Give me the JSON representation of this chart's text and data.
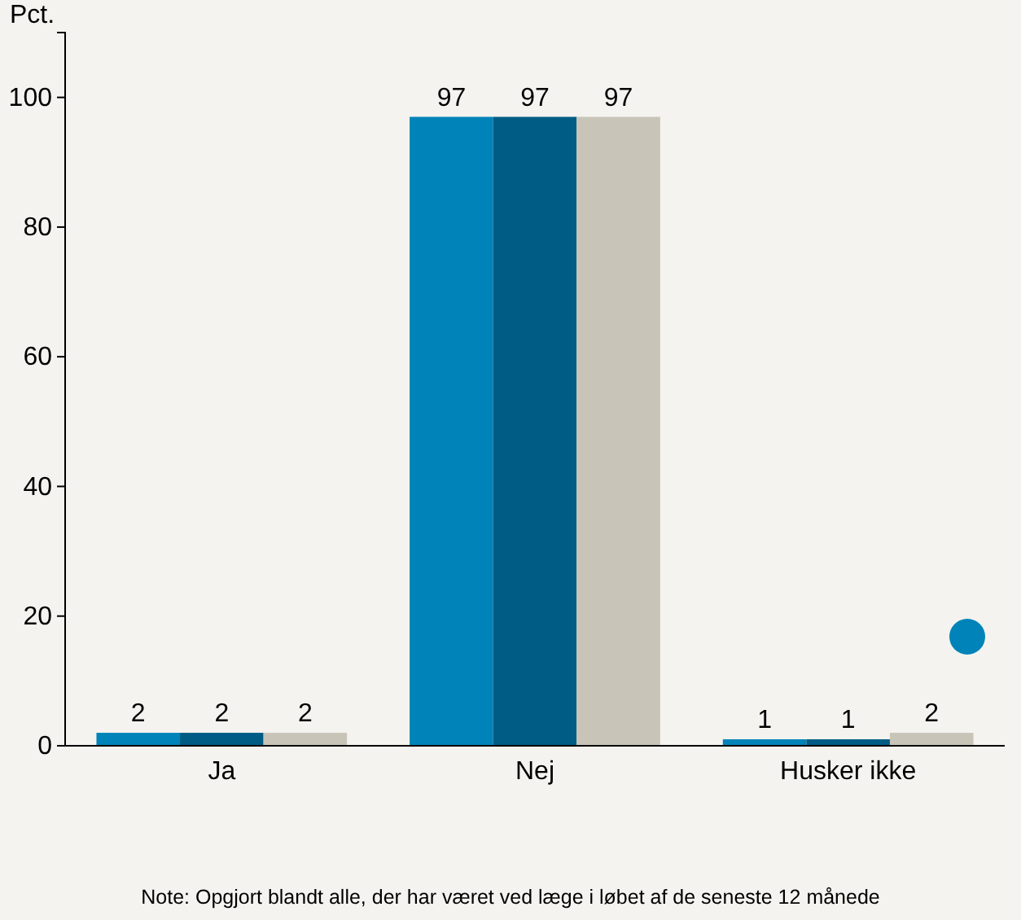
{
  "chart_data": {
    "type": "bar",
    "ylabel": "Pct.",
    "categories": [
      "Ja",
      "Nej",
      "Husker ikke"
    ],
    "series": [
      {
        "color": "#0083b8",
        "values": [
          2,
          97,
          1
        ]
      },
      {
        "color": "#005b85",
        "values": [
          2,
          97,
          1
        ]
      },
      {
        "color": "#c8c5b8",
        "values": [
          2,
          97,
          2
        ]
      }
    ],
    "ylim": [
      0,
      110
    ],
    "yticks": [
      0,
      20,
      40,
      60,
      80,
      100
    ],
    "data_labels": true,
    "annotations": [
      "Note: Opgjort blandt alle, der har været ved læge i løbet af de seneste 12 månede"
    ]
  }
}
